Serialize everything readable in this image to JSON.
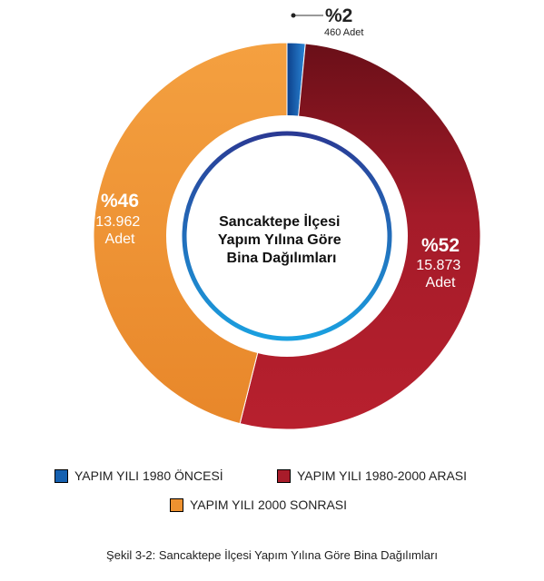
{
  "chart_data": {
    "type": "pie",
    "title": "Sancaktepe İlçesi Yapım Yılına Göre Bina Dağılımları",
    "title_lines": [
      "Sancaktepe İlçesi",
      "Yapım Yılına Göre",
      "Bina Dağılımları"
    ],
    "series": [
      {
        "name": "YAPIM YILI 1980 ÖNCESİ",
        "value": 460,
        "percent_label": "%2",
        "count_label": "460 Adet",
        "color": "#1560b0"
      },
      {
        "name": "YAPIM YILI 1980-2000 ARASI",
        "value": 15873,
        "percent_label": "%52",
        "count_line1": "15.873",
        "count_line2": "Adet",
        "color": "#a81c2a"
      },
      {
        "name": "YAPIM YILI 2000 SONRASI",
        "value": 13962,
        "percent_label": "%46",
        "count_line1": "13.962",
        "count_line2": "Adet",
        "color": "#ee9230"
      }
    ],
    "legend_placement": "bottom"
  },
  "caption": "Şekil 3-2: Sancaktepe İlçesi Yapım Yılına Göre Bina Dağılımları"
}
